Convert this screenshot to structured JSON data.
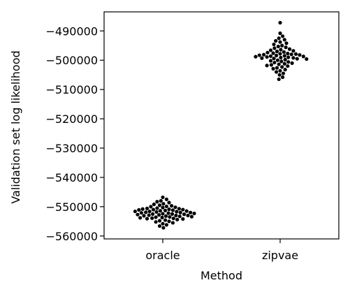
{
  "chart_data": {
    "type": "scatter",
    "style": "swarm",
    "categories": [
      "oracle",
      "zipvae"
    ],
    "xlabel": "Method",
    "ylabel": "Validation set log likelihood",
    "ylim": [
      -561000,
      -483500
    ],
    "yticks": [
      -490000,
      -500000,
      -510000,
      -520000,
      -530000,
      -540000,
      -550000,
      -560000
    ],
    "ytick_labels": [
      "−490000",
      "−500000",
      "−510000",
      "−520000",
      "−530000",
      "−540000",
      "−550000",
      "−560000"
    ],
    "grid": false,
    "point_color": "#000000",
    "series": [
      {
        "category": "oracle",
        "values": [
          -546800,
          -547500,
          -548000,
          -548300,
          -548600,
          -549000,
          -549200,
          -549500,
          -549700,
          -549900,
          -550000,
          -550200,
          -550300,
          -550500,
          -550600,
          -550700,
          -550800,
          -550900,
          -551000,
          -551000,
          -551100,
          -551200,
          -551300,
          -551400,
          -551500,
          -551600,
          -551600,
          -551700,
          -551800,
          -551900,
          -552000,
          -552000,
          -552100,
          -552200,
          -552300,
          -552400,
          -552500,
          -552500,
          -552600,
          -552700,
          -552800,
          -552900,
          -553000,
          -553000,
          -553100,
          -553200,
          -553300,
          -553400,
          -553500,
          -553600,
          -553700,
          -553800,
          -553900,
          -554000,
          -554100,
          -554200,
          -554400,
          -554600,
          -554800,
          -555000,
          -555200,
          -555500,
          -555800,
          -556200,
          -556600,
          -557200
        ]
      },
      {
        "category": "zipvae",
        "values": [
          -487200,
          -490800,
          -491800,
          -492500,
          -493000,
          -493400,
          -493800,
          -494200,
          -494600,
          -495000,
          -495300,
          -495600,
          -495900,
          -496200,
          -496400,
          -496600,
          -496800,
          -497000,
          -497200,
          -497400,
          -497600,
          -497700,
          -497800,
          -497900,
          -498000,
          -498100,
          -498200,
          -498300,
          -498400,
          -498500,
          -498600,
          -498700,
          -498800,
          -498900,
          -499000,
          -499100,
          -499200,
          -499300,
          -499400,
          -499500,
          -499600,
          -499800,
          -500000,
          -500200,
          -500400,
          -500600,
          -500800,
          -501000,
          -501200,
          -501400,
          -501600,
          -501800,
          -502000,
          -502300,
          -502600,
          -502900,
          -503200,
          -503600,
          -504000,
          -504500,
          -505000,
          -505800,
          -506500
        ]
      }
    ]
  }
}
